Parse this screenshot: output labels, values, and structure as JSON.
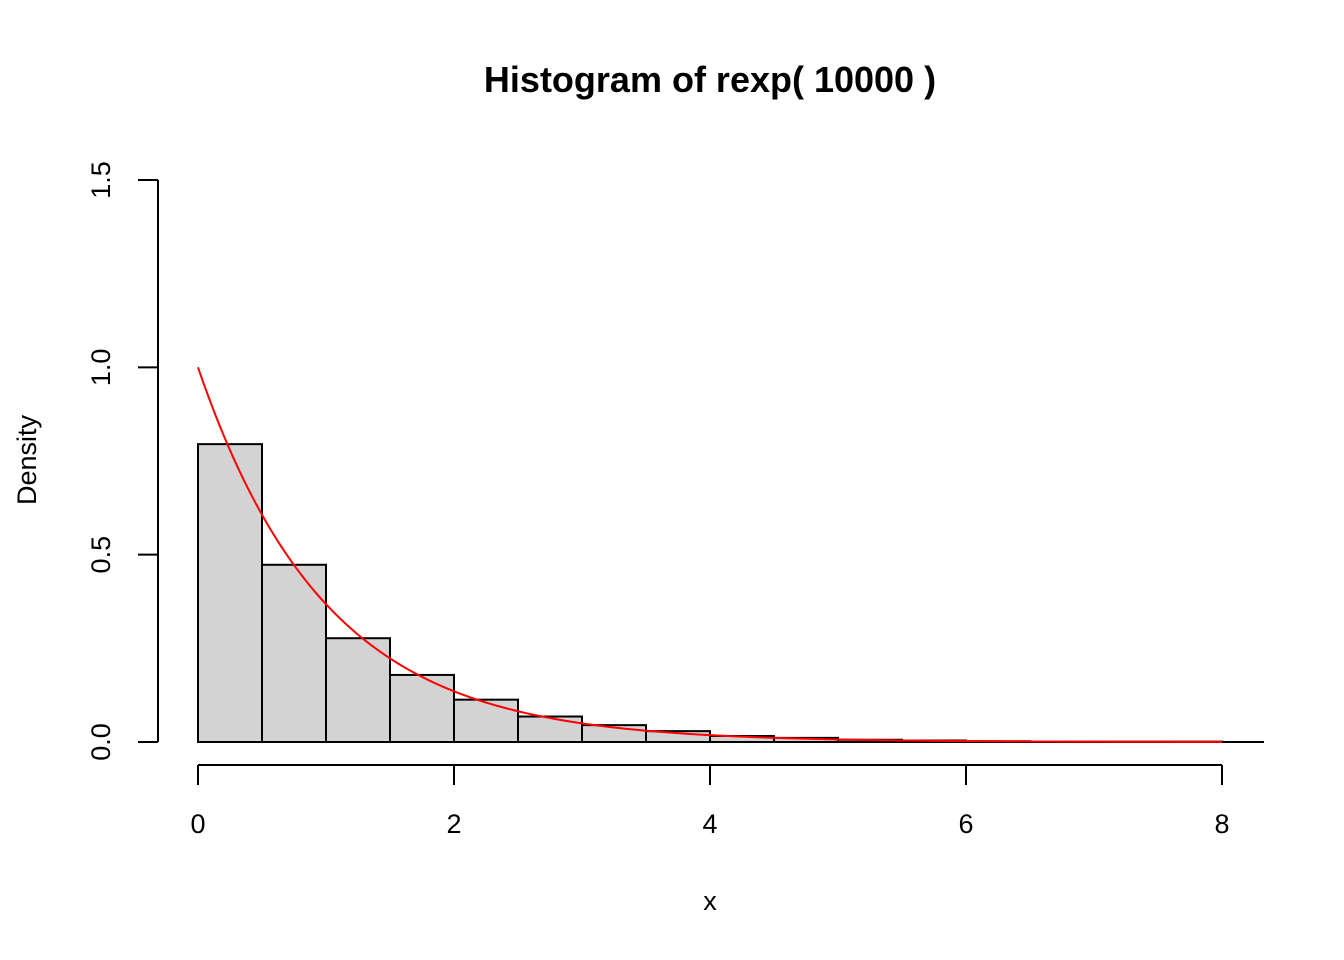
{
  "chart_data": {
    "type": "bar",
    "title": "Histogram of rexp( 10000 )",
    "xlabel": "x",
    "ylabel": "Density",
    "xlim": [
      0,
      8.3
    ],
    "ylim": [
      0,
      1.5
    ],
    "x_ticks": [
      "0",
      "2",
      "4",
      "6",
      "8"
    ],
    "y_ticks": [
      "0.0",
      "0.5",
      "1.0",
      "1.5"
    ],
    "bin_width": 0.5,
    "bins": [
      {
        "start": 0.0,
        "end": 0.5,
        "density": 0.795
      },
      {
        "start": 0.5,
        "end": 1.0,
        "density": 0.473
      },
      {
        "start": 1.0,
        "end": 1.5,
        "density": 0.277
      },
      {
        "start": 1.5,
        "end": 2.0,
        "density": 0.179
      },
      {
        "start": 2.0,
        "end": 2.5,
        "density": 0.113
      },
      {
        "start": 2.5,
        "end": 3.0,
        "density": 0.068
      },
      {
        "start": 3.0,
        "end": 3.5,
        "density": 0.045
      },
      {
        "start": 3.5,
        "end": 4.0,
        "density": 0.029
      },
      {
        "start": 4.0,
        "end": 4.5,
        "density": 0.016
      },
      {
        "start": 4.5,
        "end": 5.0,
        "density": 0.011
      },
      {
        "start": 5.0,
        "end": 5.5,
        "density": 0.006
      },
      {
        "start": 5.5,
        "end": 6.0,
        "density": 0.004
      },
      {
        "start": 6.0,
        "end": 6.5,
        "density": 0.002
      },
      {
        "start": 6.5,
        "end": 7.0,
        "density": 0.001
      },
      {
        "start": 7.0,
        "end": 7.5,
        "density": 0.001
      },
      {
        "start": 7.5,
        "end": 8.0,
        "density": 0.001
      }
    ],
    "curve": {
      "function": "exp(-x)",
      "x_range": [
        0,
        8
      ]
    },
    "colors": {
      "bar_fill": "#d3d3d3",
      "bar_border": "#000000",
      "curve": "#ff0000",
      "axis": "#000000"
    },
    "grid": false,
    "legend": "none"
  }
}
